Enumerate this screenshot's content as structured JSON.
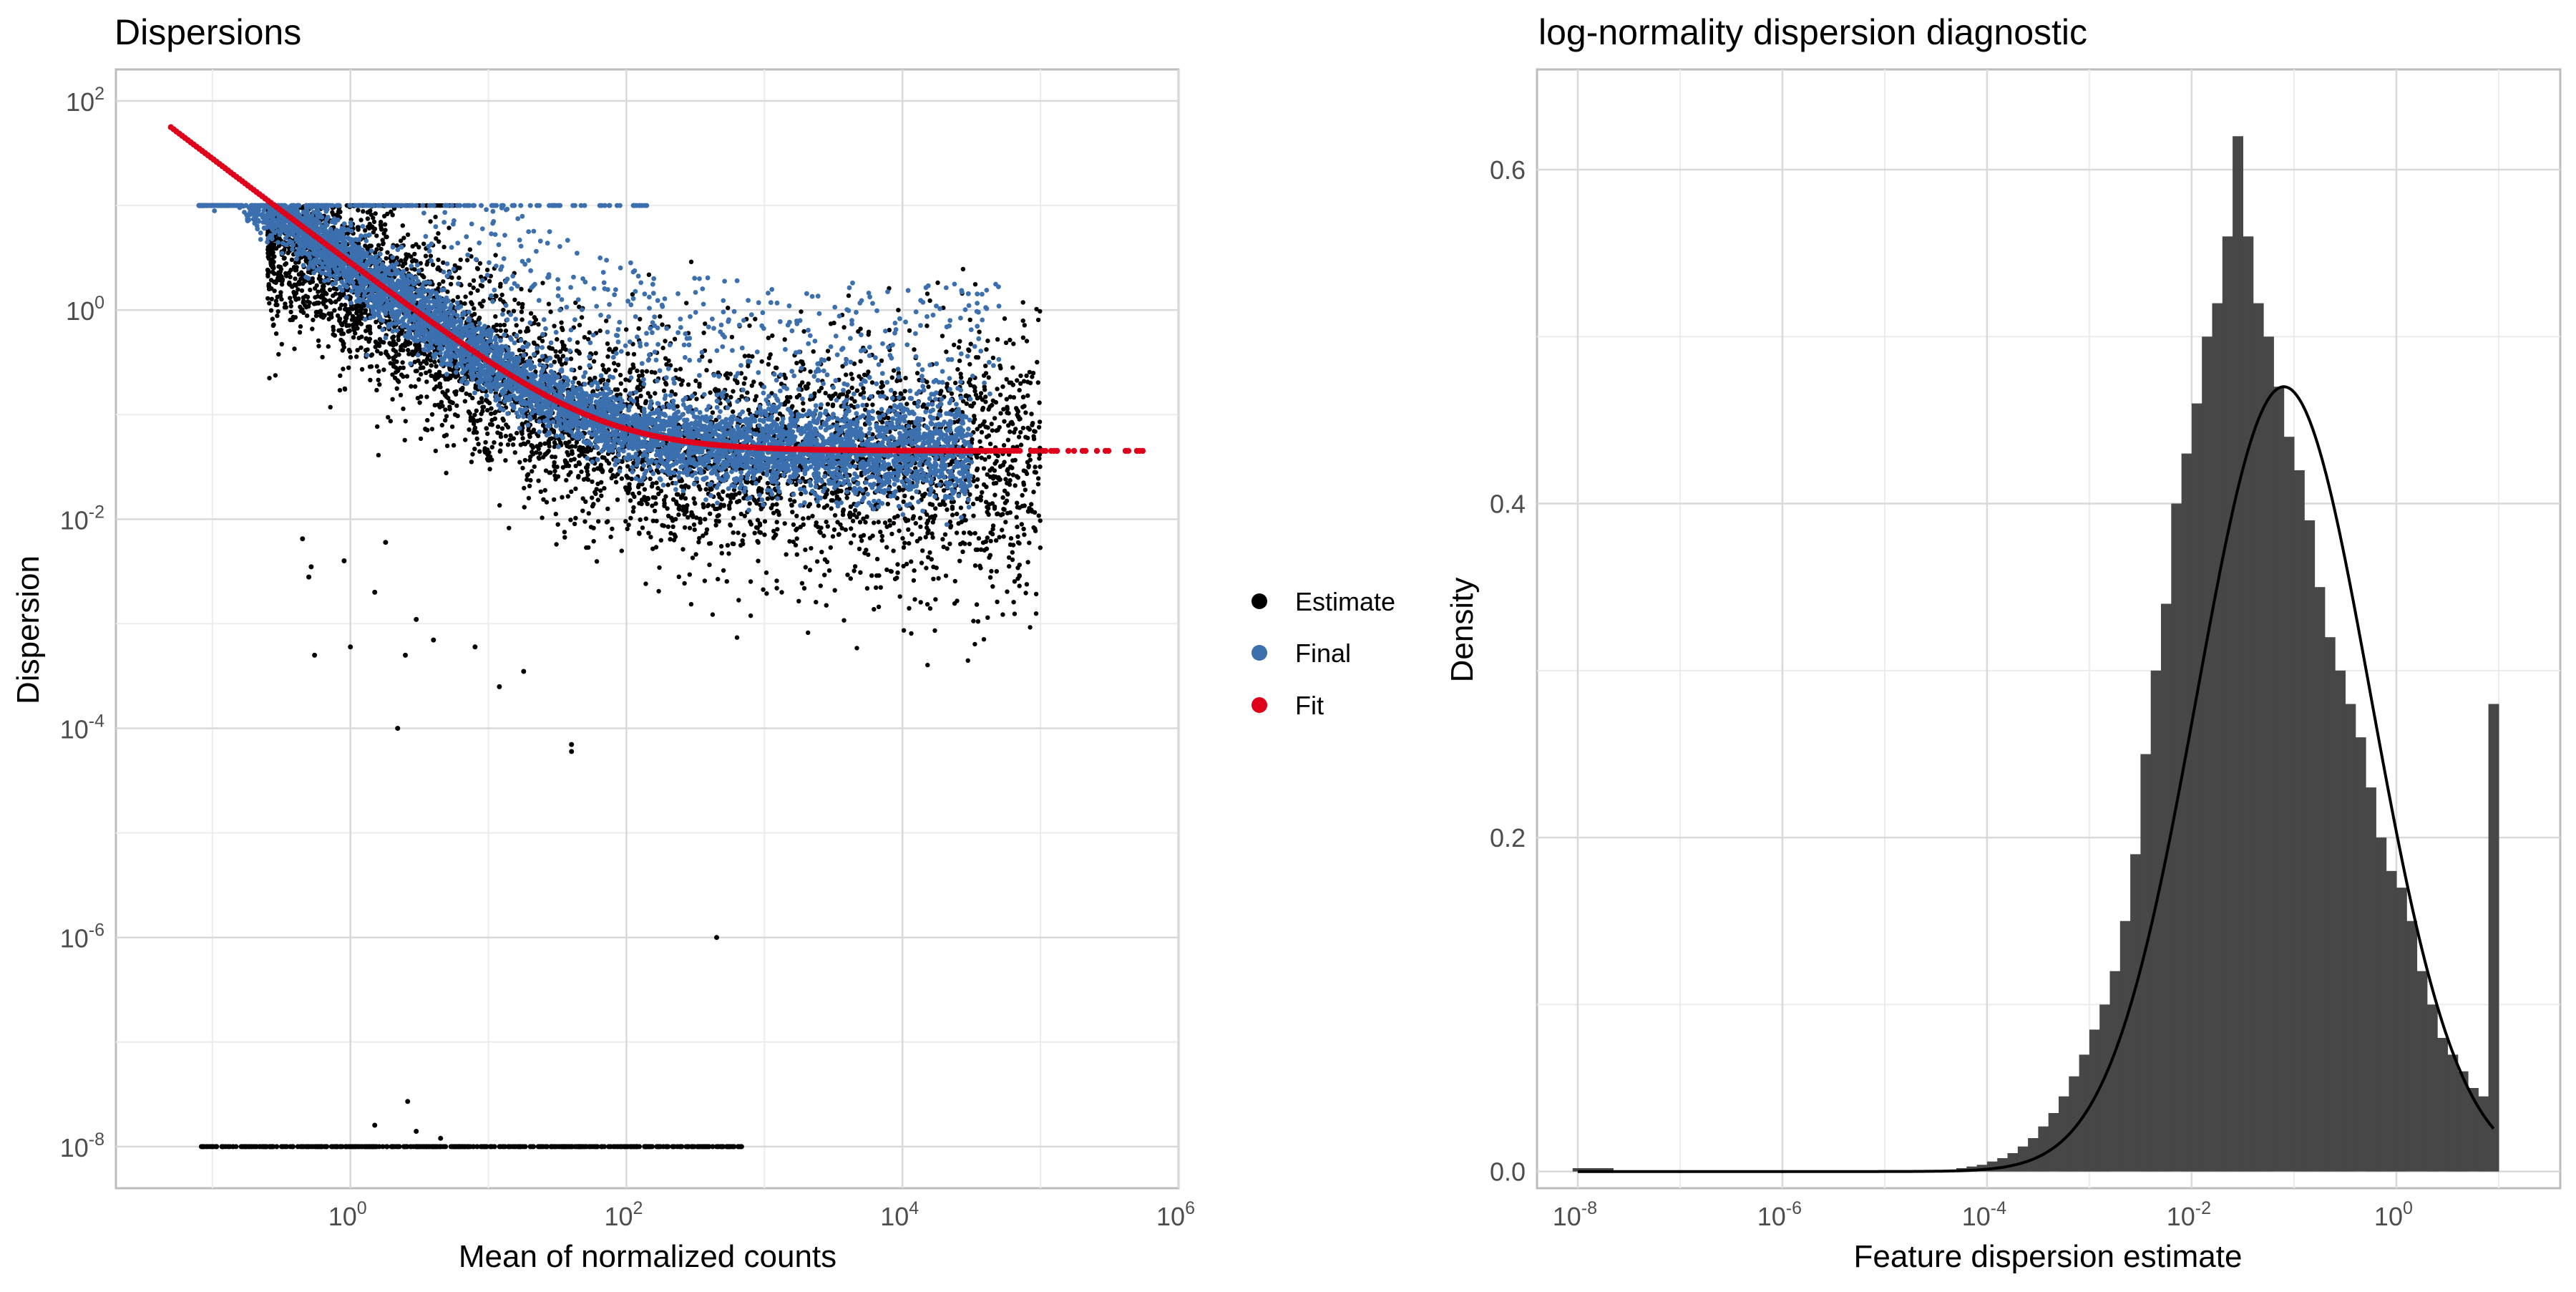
{
  "chart_data": [
    {
      "type": "scatter",
      "title": "Dispersions",
      "xlabel": "Mean of normalized counts",
      "ylabel": "Dispersion",
      "x_scale": "log10",
      "y_scale": "log10",
      "xlim": [
        0.02,
        1000000
      ],
      "ylim": [
        4e-09,
        200
      ],
      "grid": true,
      "x_ticks": [
        {
          "base": "10",
          "exp": "0",
          "value": 1
        },
        {
          "base": "10",
          "exp": "2",
          "value": 100
        },
        {
          "base": "10",
          "exp": "4",
          "value": 10000
        },
        {
          "base": "10",
          "exp": "6",
          "value": 1000000
        }
      ],
      "y_ticks": [
        {
          "base": "10",
          "exp": "2",
          "value": 100
        },
        {
          "base": "10",
          "exp": "0",
          "value": 1
        },
        {
          "base": "10",
          "exp": "-2",
          "value": 0.01
        },
        {
          "base": "10",
          "exp": "-4",
          "value": 0.0001
        },
        {
          "base": "10",
          "exp": "-6",
          "value": 1e-06
        },
        {
          "base": "10",
          "exp": "-8",
          "value": 1e-08
        }
      ],
      "legend": {
        "position": "right",
        "entries": [
          {
            "label": "Estimate",
            "color": "#000000"
          },
          {
            "label": "Final",
            "color": "#3b6fae"
          },
          {
            "label": "Fit",
            "color": "#e0001b"
          }
        ]
      },
      "series": [
        {
          "name": "Estimate",
          "color": "#000000",
          "description_points": [
            {
              "x": 0.45,
              "y": 0.0065
            },
            {
              "x": 0.5,
              "y": 0.0028
            },
            {
              "x": 0.52,
              "y": 0.0035
            },
            {
              "x": 0.55,
              "y": 0.0005
            },
            {
              "x": 0.9,
              "y": 0.004
            },
            {
              "x": 1.0,
              "y": 0.0006
            },
            {
              "x": 1.5,
              "y": 0.002
            },
            {
              "x": 1.8,
              "y": 0.006
            },
            {
              "x": 2.2,
              "y": 0.0001
            },
            {
              "x": 2.5,
              "y": 0.0005
            },
            {
              "x": 3.0,
              "y": 0.0011
            },
            {
              "x": 4.0,
              "y": 0.0007
            },
            {
              "x": 8.0,
              "y": 0.0006
            },
            {
              "x": 12.0,
              "y": 0.00025
            },
            {
              "x": 18.0,
              "y": 0.00035
            },
            {
              "x": 40.0,
              "y": 7e-05
            },
            {
              "x": 40.0,
              "y": 6e-05
            },
            {
              "x": 450.0,
              "y": 1e-06
            }
          ],
          "zero_dispersion_band": {
            "x_from": 0.08,
            "x_to": 700,
            "y": 1e-08
          },
          "cloud_note_y_range_per_decade": [
            {
              "x": 1,
              "y_low": 0.15,
              "y_high": 10
            },
            {
              "x": 10,
              "y_low": 0.03,
              "y_high": 2
            },
            {
              "x": 100,
              "y_low": 0.006,
              "y_high": 0.5
            },
            {
              "x": 1000,
              "y_low": 0.004,
              "y_high": 0.3
            },
            {
              "x": 10000,
              "y_low": 0.01,
              "y_high": 0.4
            },
            {
              "x": 100000,
              "y_low": 0.015,
              "y_high": 0.15
            }
          ]
        },
        {
          "name": "Final",
          "color": "#3b6fae",
          "cap_band": {
            "x_from": 0.08,
            "x_to": 150,
            "y": 10
          }
        },
        {
          "name": "Fit",
          "color": "#e0001b",
          "curve": {
            "asymptotic_dispersion": 0.045,
            "extra_poisson": 2.8,
            "x_from": 0.05,
            "x_to": 550000
          }
        }
      ]
    },
    {
      "type": "bar",
      "title": "log-normality dispersion diagnostic",
      "xlabel": "Feature dispersion estimate",
      "ylabel": "Density",
      "x_scale": "log10",
      "xlim": [
        4e-09,
        40
      ],
      "ylim": [
        -0.01,
        0.66
      ],
      "grid": true,
      "x_ticks": [
        {
          "base": "10",
          "exp": "-8",
          "value": 1e-08
        },
        {
          "base": "10",
          "exp": "-6",
          "value": 1e-06
        },
        {
          "base": "10",
          "exp": "-4",
          "value": 0.0001
        },
        {
          "base": "10",
          "exp": "-2",
          "value": 0.01
        },
        {
          "base": "10",
          "exp": "0",
          "value": 1
        }
      ],
      "y_ticks": [
        "0.0",
        "0.2",
        "0.4",
        "0.6"
      ],
      "y_tick_values": [
        0,
        0.2,
        0.4,
        0.6
      ],
      "histogram": {
        "color": "#474747",
        "bins_log10_x_start": [
          -4.4,
          -4.3,
          -4.2,
          -4.1,
          -4.0,
          -3.9,
          -3.8,
          -3.7,
          -3.6,
          -3.5,
          -3.4,
          -3.3,
          -3.2,
          -3.1,
          -3.0,
          -2.9,
          -2.8,
          -2.7,
          -2.6,
          -2.5,
          -2.4,
          -2.3,
          -2.2,
          -2.1,
          -2.0,
          -1.9,
          -1.8,
          -1.7,
          -1.6,
          -1.5,
          -1.4,
          -1.3,
          -1.2,
          -1.1,
          -1.0,
          -0.9,
          -0.8,
          -0.7,
          -0.6,
          -0.5,
          -0.4,
          -0.3,
          -0.2,
          -0.1,
          0.0,
          0.1,
          0.2,
          0.3,
          0.4,
          0.5,
          0.6,
          0.7,
          0.8,
          0.9
        ],
        "densities": [
          0.001,
          0.002,
          0.003,
          0.004,
          0.006,
          0.008,
          0.011,
          0.015,
          0.02,
          0.027,
          0.035,
          0.045,
          0.057,
          0.07,
          0.085,
          0.1,
          0.12,
          0.15,
          0.19,
          0.25,
          0.3,
          0.34,
          0.4,
          0.43,
          0.46,
          0.5,
          0.52,
          0.56,
          0.62,
          0.56,
          0.52,
          0.5,
          0.47,
          0.44,
          0.42,
          0.39,
          0.35,
          0.32,
          0.3,
          0.28,
          0.26,
          0.23,
          0.2,
          0.18,
          0.17,
          0.15,
          0.12,
          0.1,
          0.08,
          0.07,
          0.06,
          0.05,
          0.045,
          0.28
        ],
        "bin_width_log10": 0.1,
        "small_cluster": {
          "log10_x": -8,
          "density": 0.002
        }
      },
      "normal_curve": {
        "mean_log10": -1.1,
        "sd_log10": 0.85,
        "peak_density": 0.47,
        "x_from_log10": -8,
        "x_to_log10": 0.95
      }
    }
  ]
}
